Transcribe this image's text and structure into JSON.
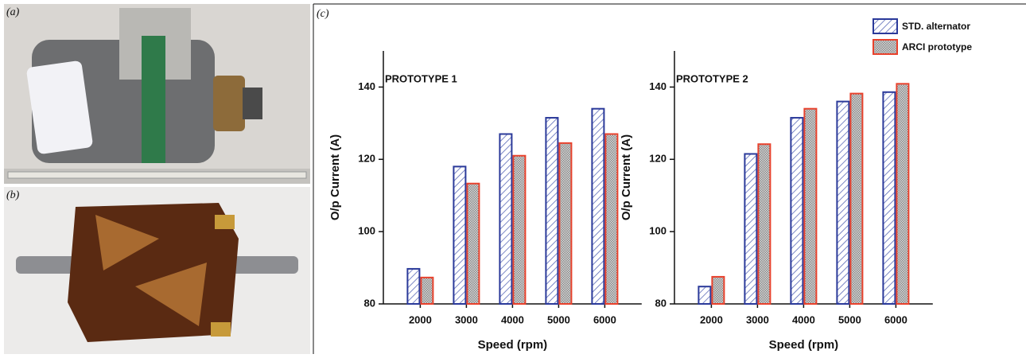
{
  "panel_labels": [
    "(a)",
    "(b)",
    "(c)"
  ],
  "chart_data": [
    {
      "type": "bar",
      "annotation": "PROTOTYPE 1",
      "xlabel": "Speed (rpm)",
      "ylabel": "O/p Current (A)",
      "categories": [
        "2000",
        "3000",
        "4000",
        "5000",
        "6000"
      ],
      "series": [
        {
          "name": "STD. alternator",
          "color": "#2b3a9a",
          "values": [
            89.7,
            118,
            127,
            131.5,
            134
          ]
        },
        {
          "name": "ARCI prototype",
          "color": "#e8412c",
          "values": [
            87.3,
            113.3,
            121,
            124.5,
            127
          ]
        }
      ],
      "ylim": [
        80,
        150
      ],
      "yticks": [
        80,
        100,
        120,
        140
      ]
    },
    {
      "type": "bar",
      "annotation": "PROTOTYPE 2",
      "xlabel": "Speed (rpm)",
      "ylabel": "O/p Current (A)",
      "categories": [
        "2000",
        "3000",
        "4000",
        "5000",
        "6000"
      ],
      "series": [
        {
          "color": "#2b3a9a",
          "values": [
            84.8,
            121.5,
            131.5,
            136,
            138.6
          ]
        },
        {
          "color": "#e8412c",
          "values": [
            87.5,
            124.2,
            134,
            138.2,
            140.9
          ]
        }
      ],
      "ylim": [
        80,
        150
      ],
      "yticks": [
        80,
        100,
        120,
        140
      ]
    }
  ]
}
